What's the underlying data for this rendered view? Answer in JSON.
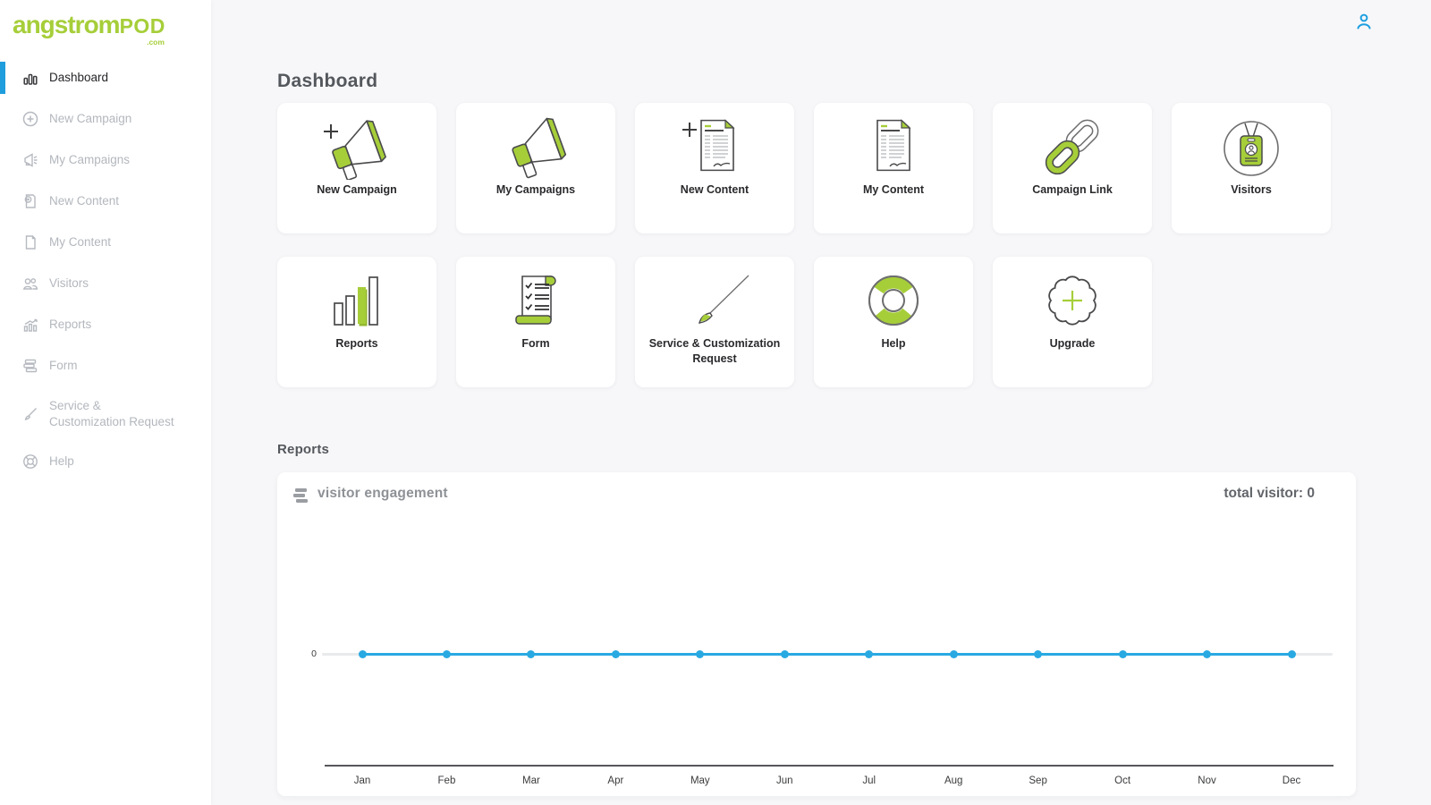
{
  "brand": {
    "main": "angstrom",
    "sub": "POD",
    "tld": ".com"
  },
  "colors": {
    "green": "#a6ce39",
    "blue": "#29a9e2",
    "active_bar": "#1f9ddc",
    "background": "#f7f7f9"
  },
  "sidebar": {
    "items": [
      {
        "label": "Dashboard",
        "icon": "bar-chart-icon",
        "active": true
      },
      {
        "label": "New Campaign",
        "icon": "plus-circle-icon",
        "active": false
      },
      {
        "label": "My Campaigns",
        "icon": "megaphone-icon",
        "active": false
      },
      {
        "label": "New Content",
        "icon": "document-plus-icon",
        "active": false
      },
      {
        "label": "My Content",
        "icon": "document-icon",
        "active": false
      },
      {
        "label": "Visitors",
        "icon": "people-icon",
        "active": false
      },
      {
        "label": "Reports",
        "icon": "chart-bars-icon",
        "active": false
      },
      {
        "label": "Form",
        "icon": "layers-icon",
        "active": false
      },
      {
        "label": "Service &\nCustomization Request",
        "icon": "brush-icon",
        "active": false
      },
      {
        "label": "Help",
        "icon": "lifebuoy-icon",
        "active": false
      }
    ]
  },
  "page": {
    "title": "Dashboard",
    "reports_section_title": "Reports"
  },
  "cards": [
    {
      "label": "New Campaign",
      "icon": "megaphone-plus-icon"
    },
    {
      "label": "My Campaigns",
      "icon": "megaphone-icon"
    },
    {
      "label": "New Content",
      "icon": "document-plus-icon"
    },
    {
      "label": "My Content",
      "icon": "document-icon"
    },
    {
      "label": "Campaign Link",
      "icon": "chain-link-icon"
    },
    {
      "label": "Visitors",
      "icon": "id-badge-icon"
    },
    {
      "label": "Reports",
      "icon": "bar-chart-icon"
    },
    {
      "label": "Form",
      "icon": "checklist-scroll-icon"
    },
    {
      "label": "Service & Customization Request",
      "icon": "brush-icon"
    },
    {
      "label": "Help",
      "icon": "lifebuoy-icon"
    },
    {
      "label": "Upgrade",
      "icon": "seal-plus-icon"
    }
  ],
  "chart_data": {
    "type": "line",
    "title": "visitor engagement",
    "total_label": "total visitor: 0",
    "categories": [
      "Jan",
      "Feb",
      "Mar",
      "Apr",
      "May",
      "Jun",
      "Jul",
      "Aug",
      "Sep",
      "Oct",
      "Nov",
      "Dec"
    ],
    "series": [
      {
        "name": "visitors",
        "values": [
          0,
          0,
          0,
          0,
          0,
          0,
          0,
          0,
          0,
          0,
          0,
          0
        ]
      }
    ],
    "yticks": [
      "0"
    ],
    "ylim": [
      0,
      1
    ],
    "line_color": "#29a9e2",
    "grid": false,
    "legend": "none"
  }
}
